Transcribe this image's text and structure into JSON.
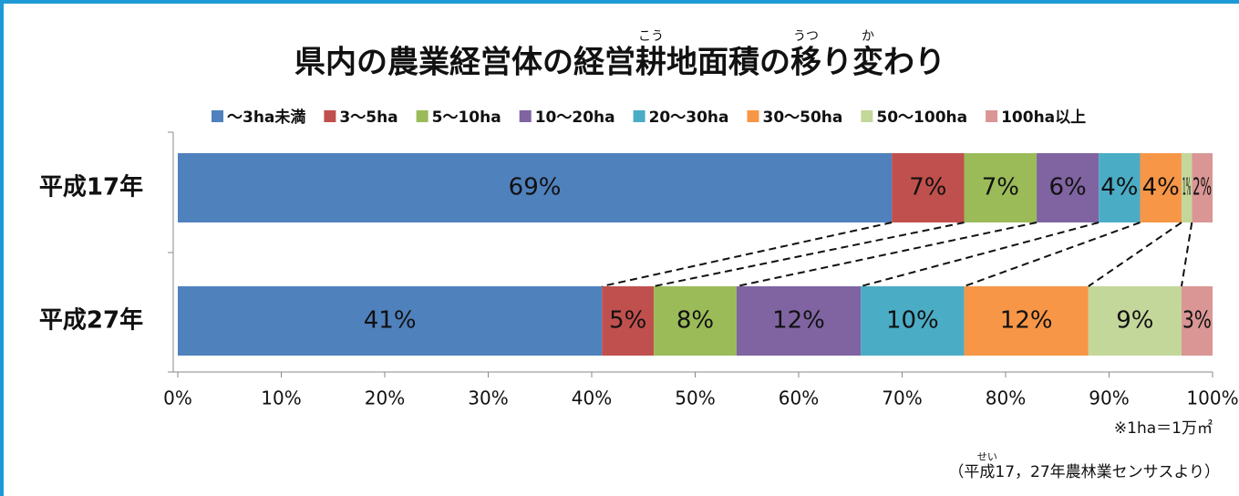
{
  "chart_data": {
    "type": "stacked_barh",
    "title": "県内の農業経営体の経営耕地面積の移り変わり",
    "title_ruby": [
      {
        "base": "耕",
        "ruby": "こう"
      },
      {
        "base": "移",
        "ruby": "うつ"
      },
      {
        "base": "変",
        "ruby": "か"
      }
    ],
    "categories": [
      "平成17年",
      "平成27年"
    ],
    "series": [
      {
        "name": "～3ha未満",
        "color": "#4f81bd",
        "values": [
          69,
          41
        ],
        "value_labels": [
          "69%",
          "41%"
        ]
      },
      {
        "name": "3～5ha",
        "color": "#c0504d",
        "values": [
          7,
          5
        ],
        "value_labels": [
          "7%",
          "5%"
        ]
      },
      {
        "name": "5～10ha",
        "color": "#9bbb59",
        "values": [
          7,
          8
        ],
        "value_labels": [
          "7%",
          "8%"
        ]
      },
      {
        "name": "10～20ha",
        "color": "#8064a2",
        "values": [
          6,
          12
        ],
        "value_labels": [
          "6%",
          "12%"
        ]
      },
      {
        "name": "20～30ha",
        "color": "#4bacc6",
        "values": [
          4,
          10
        ],
        "value_labels": [
          "4%",
          "10%"
        ]
      },
      {
        "name": "30～50ha",
        "color": "#f79646",
        "values": [
          4,
          12
        ],
        "value_labels": [
          "4%",
          "12%"
        ]
      },
      {
        "name": "50～100ha",
        "color": "#c4d79b",
        "values": [
          1,
          9
        ],
        "value_labels": [
          "1%",
          "9%"
        ]
      },
      {
        "name": "100ha以上",
        "color": "#d99694",
        "values": [
          2,
          3
        ],
        "value_labels": [
          "2%",
          "3%"
        ]
      }
    ],
    "xlim": [
      0,
      100
    ],
    "xticks": [
      {
        "value": 0,
        "label": "0%"
      },
      {
        "value": 10,
        "label": "10%"
      },
      {
        "value": 20,
        "label": "20%"
      },
      {
        "value": 30,
        "label": "30%"
      },
      {
        "value": 40,
        "label": "40%"
      },
      {
        "value": 50,
        "label": "50%"
      },
      {
        "value": 60,
        "label": "60%"
      },
      {
        "value": 70,
        "label": "70%"
      },
      {
        "value": 80,
        "label": "80%"
      },
      {
        "value": 90,
        "label": "90%"
      },
      {
        "value": 100,
        "label": "100%"
      }
    ],
    "note": "※1ha＝1万㎡",
    "source": "（平成17，27年農林業センサスより）",
    "source_ruby": {
      "base": "成",
      "ruby": "せい"
    },
    "legend": "top"
  }
}
